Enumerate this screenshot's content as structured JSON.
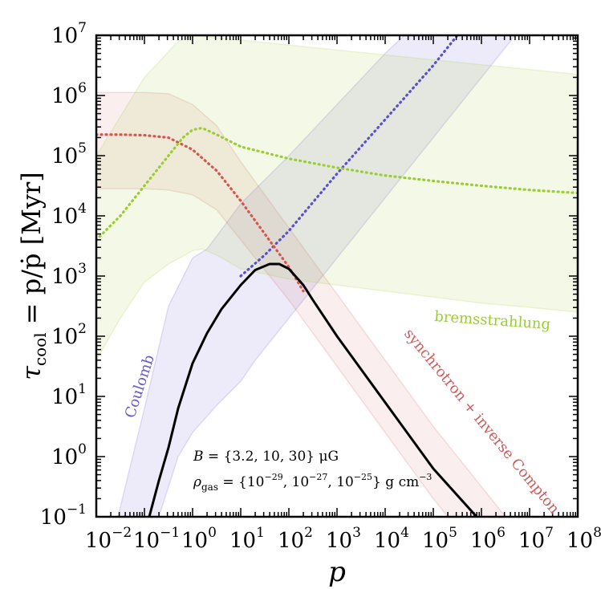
{
  "chart_data": {
    "type": "line",
    "title": "",
    "xlabel": "p",
    "ylabel_prefix": "τ",
    "ylabel_sub": "cool",
    "ylabel_rest": " = p/ṗ [Myr]",
    "xscale": "log",
    "yscale": "log",
    "xlim_exp": [
      -2,
      8
    ],
    "ylim_exp": [
      -1,
      7
    ],
    "x_ticks": [
      {
        "base": "10",
        "exp": "−2"
      },
      {
        "base": "10",
        "exp": "−1"
      },
      {
        "base": "10",
        "exp": "0"
      },
      {
        "base": "10",
        "exp": "1"
      },
      {
        "base": "10",
        "exp": "2"
      },
      {
        "base": "10",
        "exp": "3"
      },
      {
        "base": "10",
        "exp": "4"
      },
      {
        "base": "10",
        "exp": "5"
      },
      {
        "base": "10",
        "exp": "6"
      },
      {
        "base": "10",
        "exp": "7"
      },
      {
        "base": "10",
        "exp": "8"
      }
    ],
    "y_ticks": [
      {
        "base": "10",
        "exp": "−1"
      },
      {
        "base": "10",
        "exp": "0"
      },
      {
        "base": "10",
        "exp": "1"
      },
      {
        "base": "10",
        "exp": "2"
      },
      {
        "base": "10",
        "exp": "3"
      },
      {
        "base": "10",
        "exp": "4"
      },
      {
        "base": "10",
        "exp": "5"
      },
      {
        "base": "10",
        "exp": "6"
      },
      {
        "base": "10",
        "exp": "7"
      }
    ],
    "x_tick_exponents": [
      -2,
      -1,
      0,
      1,
      2,
      3,
      4,
      5,
      6,
      7,
      8
    ],
    "y_tick_exponents": [
      -1,
      0,
      1,
      2,
      3,
      4,
      5,
      6,
      7
    ],
    "bands": [
      {
        "name": "Coulomb band",
        "color": "#6a5acd",
        "opacity": 0.12,
        "upper": [
          [
            -1.55,
            -1.0
          ],
          [
            -1.0,
            0.8
          ],
          [
            -0.5,
            2.5
          ],
          [
            0.0,
            3.3
          ],
          [
            0.3,
            3.45
          ],
          [
            1.0,
            4.2
          ],
          [
            2.0,
            5.0
          ],
          [
            3.0,
            5.85
          ],
          [
            4.0,
            6.7
          ],
          [
            4.4,
            7.0
          ]
        ],
        "lower": [
          [
            -0.7,
            -1.0
          ],
          [
            -0.3,
            0.0
          ],
          [
            0.0,
            0.4
          ],
          [
            0.5,
            0.85
          ],
          [
            1.0,
            1.25
          ],
          [
            1.3,
            1.6
          ],
          [
            2.0,
            2.3
          ],
          [
            3.0,
            3.3
          ],
          [
            4.0,
            4.3
          ],
          [
            5.0,
            5.3
          ],
          [
            6.0,
            6.3
          ],
          [
            6.7,
            7.0
          ]
        ]
      },
      {
        "name": "synchrotron band",
        "color": "#cd5c5c",
        "opacity": 0.1,
        "upper": [
          [
            -2.0,
            6.05
          ],
          [
            -1.0,
            6.05
          ],
          [
            -0.5,
            6.03
          ],
          [
            0.0,
            5.85
          ],
          [
            0.5,
            5.5
          ],
          [
            1.0,
            4.9
          ],
          [
            2.0,
            3.8
          ],
          [
            3.0,
            2.7
          ],
          [
            4.0,
            1.6
          ],
          [
            5.0,
            0.5
          ],
          [
            6.0,
            -0.5
          ],
          [
            6.5,
            -1.0
          ]
        ],
        "lower": [
          [
            -2.0,
            4.45
          ],
          [
            -1.0,
            4.45
          ],
          [
            -0.5,
            4.43
          ],
          [
            0.0,
            4.35
          ],
          [
            0.5,
            4.1
          ],
          [
            1.0,
            3.6
          ],
          [
            1.5,
            3.1
          ],
          [
            2.0,
            2.6
          ],
          [
            3.0,
            1.5
          ],
          [
            4.0,
            0.4
          ],
          [
            5.0,
            -0.7
          ],
          [
            5.3,
            -1.0
          ]
        ]
      },
      {
        "name": "bremsstrahlung band",
        "color": "#9acd32",
        "opacity": 0.12,
        "upper": [
          [
            -2.0,
            5.0
          ],
          [
            -1.0,
            6.3
          ],
          [
            -0.3,
            6.9
          ],
          [
            0.0,
            7.0
          ],
          [
            8.0,
            6.35
          ]
        ],
        "lower": [
          [
            -2.0,
            1.6
          ],
          [
            -1.5,
            2.3
          ],
          [
            -1.0,
            2.9
          ],
          [
            -0.5,
            3.2
          ],
          [
            0.0,
            3.42
          ],
          [
            0.2,
            3.45
          ],
          [
            0.5,
            3.35
          ],
          [
            1.0,
            3.12
          ],
          [
            2.0,
            2.95
          ],
          [
            3.0,
            2.85
          ],
          [
            4.0,
            2.75
          ],
          [
            5.0,
            2.65
          ],
          [
            6.0,
            2.55
          ],
          [
            7.0,
            2.48
          ],
          [
            8.0,
            2.4
          ]
        ]
      }
    ],
    "series": [
      {
        "name": "Coulomb",
        "style": "dotted",
        "color": "#5a4fcf",
        "points": [
          [
            1.0,
            3.0
          ],
          [
            1.5,
            3.35
          ],
          [
            2.0,
            3.75
          ],
          [
            3.0,
            4.7
          ],
          [
            4.0,
            5.6
          ],
          [
            5.0,
            6.5
          ],
          [
            5.5,
            7.0
          ]
        ]
      },
      {
        "name": "synchrotron + inverse Compton",
        "style": "dotted",
        "color": "#d9534f",
        "points": [
          [
            -2.0,
            5.35
          ],
          [
            -1.5,
            5.35
          ],
          [
            -1.0,
            5.34
          ],
          [
            -0.5,
            5.3
          ],
          [
            0.0,
            5.1
          ],
          [
            0.5,
            4.75
          ],
          [
            1.0,
            4.25
          ],
          [
            1.5,
            3.7
          ],
          [
            2.0,
            3.15
          ],
          [
            2.3,
            2.75
          ]
        ]
      },
      {
        "name": "bremsstrahlung",
        "style": "dotted",
        "color": "#9acd32",
        "points": [
          [
            -2.0,
            3.6
          ],
          [
            -1.5,
            4.0
          ],
          [
            -1.0,
            4.5
          ],
          [
            -0.5,
            5.0
          ],
          [
            -0.2,
            5.3
          ],
          [
            0.0,
            5.43
          ],
          [
            0.2,
            5.46
          ],
          [
            0.5,
            5.35
          ],
          [
            1.0,
            5.15
          ],
          [
            2.0,
            4.95
          ],
          [
            3.0,
            4.8
          ],
          [
            4.0,
            4.67
          ],
          [
            5.0,
            4.58
          ],
          [
            6.0,
            4.5
          ],
          [
            7.0,
            4.43
          ],
          [
            8.0,
            4.38
          ]
        ]
      },
      {
        "name": "total",
        "style": "solid",
        "color": "#000000",
        "points": [
          [
            -0.9,
            -1.0
          ],
          [
            -0.7,
            -0.4
          ],
          [
            -0.5,
            0.15
          ],
          [
            -0.3,
            0.8
          ],
          [
            0.0,
            1.55
          ],
          [
            0.3,
            2.05
          ],
          [
            0.6,
            2.45
          ],
          [
            1.0,
            2.85
          ],
          [
            1.3,
            3.1
          ],
          [
            1.6,
            3.2
          ],
          [
            1.8,
            3.2
          ],
          [
            2.0,
            3.12
          ],
          [
            2.3,
            2.85
          ],
          [
            2.5,
            2.6
          ],
          [
            3.0,
            2.0
          ],
          [
            4.0,
            0.9
          ],
          [
            5.0,
            -0.2
          ],
          [
            5.9,
            -1.0
          ]
        ]
      }
    ],
    "annotations": [
      {
        "text": "Coulomb",
        "color": "#6a5acd"
      },
      {
        "text": "bremsstrahlung",
        "color": "#9acd32"
      },
      {
        "text": "synchrotron + inverse Compton",
        "color": "#cd5c5c"
      }
    ],
    "legend": {
      "b_label": "B",
      "b_values": " = {3.2, 10, 30} μG",
      "rho_label": "ρ",
      "rho_sub": "gas",
      "rho_values_pre": " = {10",
      "rho_exp1": "−29",
      "rho_mid1": ", 10",
      "rho_exp2": "−27",
      "rho_mid2": ", 10",
      "rho_exp3": "−25",
      "rho_post": "} g cm",
      "rho_unit_exp": "−3"
    }
  }
}
